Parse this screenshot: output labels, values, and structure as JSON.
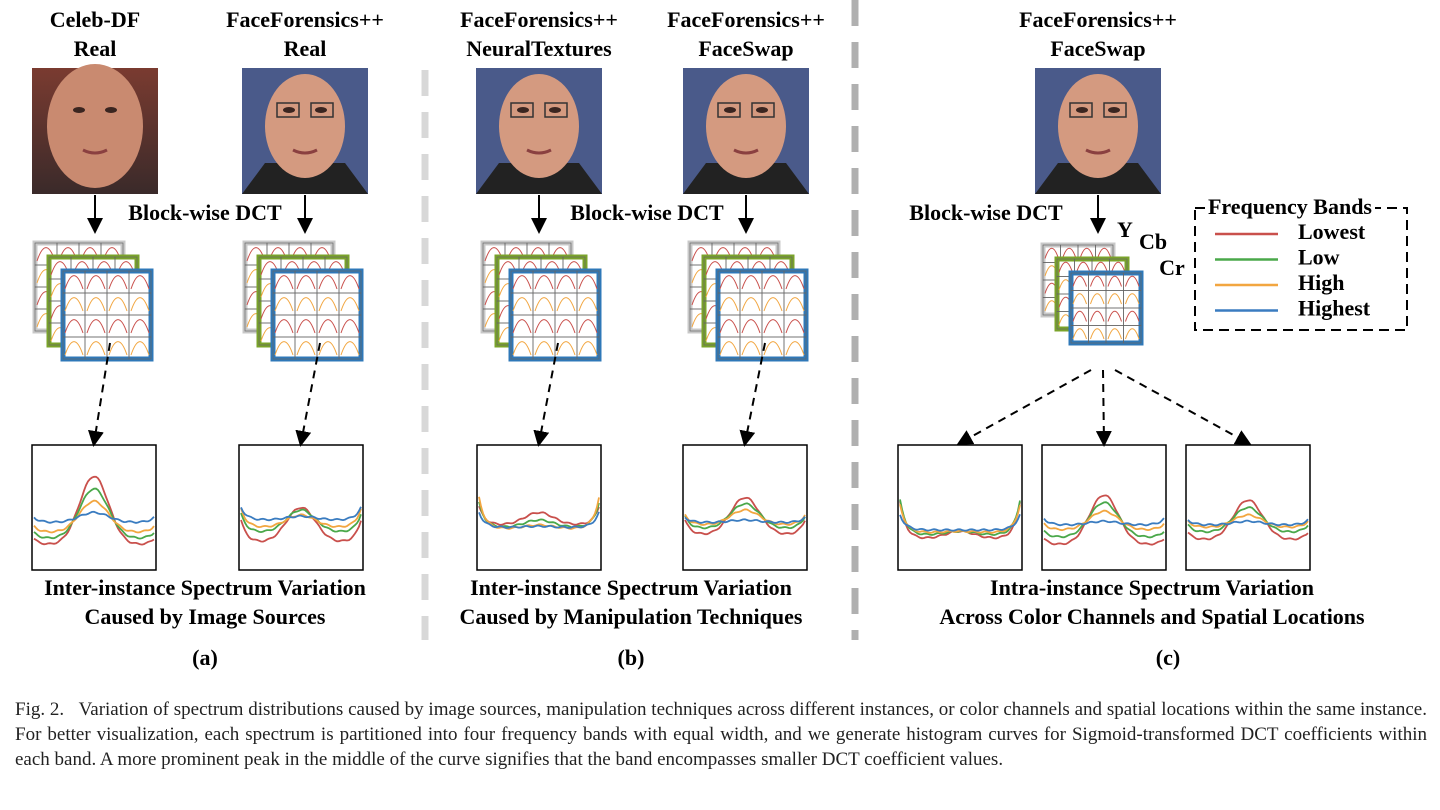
{
  "panels": [
    {
      "sources": [
        {
          "lines": [
            "Celeb-DF",
            "Real"
          ]
        },
        {
          "lines": [
            "FaceForensics++",
            "Real"
          ]
        }
      ],
      "transform": "Block-wise DCT",
      "caption": [
        "Inter-instance Spectrum Variation",
        "Caused by Image Sources"
      ],
      "label": "(a)"
    },
    {
      "sources": [
        {
          "lines": [
            "FaceForensics++",
            "NeuralTextures"
          ]
        },
        {
          "lines": [
            "FaceForensics++",
            "FaceSwap"
          ]
        }
      ],
      "transform": "Block-wise DCT",
      "caption": [
        "Inter-instance Spectrum Variation",
        "Caused by Manipulation Techniques"
      ],
      "label": "(b)"
    },
    {
      "sources": [
        {
          "lines": [
            "FaceForensics++",
            "FaceSwap"
          ]
        }
      ],
      "transform": "Block-wise DCT",
      "channels": [
        "Y",
        "Cb",
        "Cr"
      ],
      "caption": [
        "Intra-instance Spectrum Variation",
        "Across Color Channels and Spatial Locations"
      ],
      "label": "(c)"
    }
  ],
  "legend": {
    "title": "Frequency Bands",
    "items": [
      {
        "name": "Lowest",
        "color": "#c9504c"
      },
      {
        "name": "Low",
        "color": "#4aa84a"
      },
      {
        "name": "High",
        "color": "#f2a640"
      },
      {
        "name": "Highest",
        "color": "#3a7cc0"
      }
    ]
  },
  "figure_caption": {
    "label": "Fig. 2.",
    "text": "Variation of spectrum distributions caused by image sources, manipulation techniques across different instances, or color channels and spatial locations within the same instance. For better visualization, each spectrum is partitioned into four frequency bands with equal width, and we generate histogram curves for Sigmoid-transformed DCT coefficients within each band. A more prominent peak in the middle of the curve signifies that the band encompasses smaller DCT coefficient values."
  }
}
